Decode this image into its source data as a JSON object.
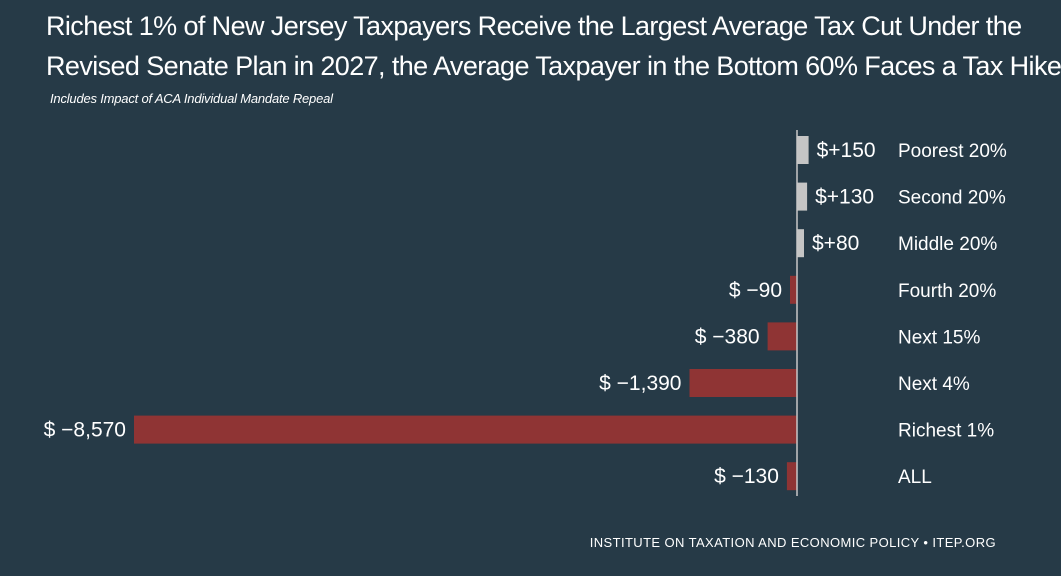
{
  "chart_data": {
    "type": "bar",
    "orientation": "horizontal",
    "title_lines": [
      "Richest 1% of New Jersey Taxpayers Receive the Largest Average Tax Cut Under the",
      "Revised Senate Plan in 2027, the Average Taxpayer in the Bottom 60% Faces a Tax Hike"
    ],
    "subtitle": "Includes Impact of ACA Individual Mandate Repeal",
    "categories": [
      "Poorest 20%",
      "Second 20%",
      "Middle 20%",
      "Fourth 20%",
      "Next 15%",
      "Next 4%",
      "Richest 1%",
      "ALL"
    ],
    "values": [
      150,
      130,
      80,
      -90,
      -380,
      -1390,
      -8570,
      -130
    ],
    "value_labels": [
      "$+150",
      "$+130",
      "$+80",
      "$ −90",
      "$ −380",
      "$ −1,390",
      "$ −8,570",
      "$ −130"
    ],
    "xlim": [
      -8570,
      150
    ],
    "xlabel": "",
    "ylabel": "",
    "grid": false,
    "colors": {
      "positive": "#c5c5c5",
      "negative": "#8f3434",
      "axis": "#c8c8c8"
    }
  },
  "footer": "INSTITUTE ON TAXATION AND ECONOMIC POLICY • ITEP.ORG",
  "colors": {
    "background": "#263a47",
    "text": "#ffffff"
  }
}
